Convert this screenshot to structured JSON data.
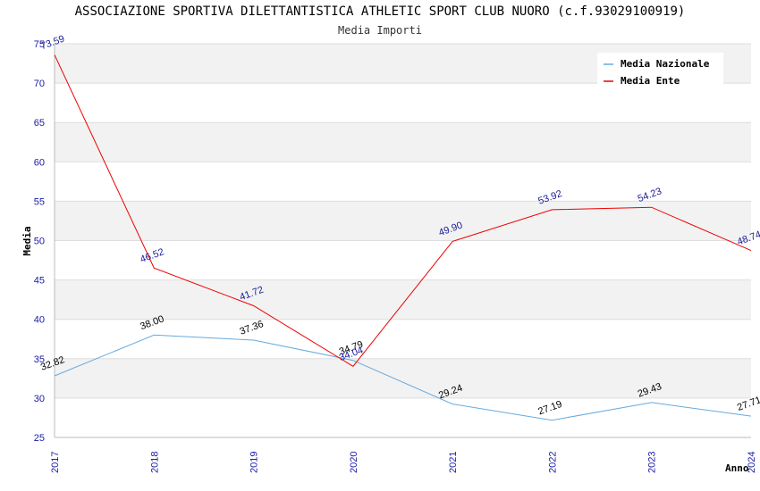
{
  "header": {
    "title": "ASSOCIAZIONE SPORTIVA DILETTANTISTICA ATHLETIC SPORT CLUB NUORO (c.f.93029100919)",
    "subtitle": "Media Importi"
  },
  "chart_data": {
    "type": "line",
    "title": "ASSOCIAZIONE SPORTIVA DILETTANTISTICA ATHLETIC SPORT CLUB NUORO (c.f.93029100919)",
    "subtitle": "Media Importi",
    "xlabel": "Anno",
    "ylabel": "Media",
    "categories": [
      "2017",
      "2018",
      "2019",
      "2020",
      "2021",
      "2022",
      "2023",
      "2024"
    ],
    "ylim": [
      25,
      75
    ],
    "yticks": [
      25,
      30,
      35,
      40,
      45,
      50,
      55,
      60,
      65,
      70,
      75
    ],
    "grid": true,
    "legend_position": "top-right",
    "series": [
      {
        "name": "Media Nazionale",
        "color": "#66aadd",
        "label_color": "#000000",
        "values": [
          32.82,
          38.0,
          37.36,
          34.79,
          29.24,
          27.19,
          29.43,
          27.71
        ],
        "labels": [
          "32.82",
          "38.00",
          "37.36",
          "34.79",
          "29.24",
          "27.19",
          "29.43",
          "27.71"
        ]
      },
      {
        "name": "Media Ente",
        "color": "#ee0000",
        "label_color": "#1a1a99",
        "values": [
          73.59,
          46.52,
          41.72,
          34.04,
          49.9,
          53.92,
          54.23,
          48.74
        ],
        "labels": [
          "73.59",
          "46.52",
          "41.72",
          "34.04",
          "49.90",
          "53.92",
          "54.23",
          "48.74"
        ]
      }
    ]
  }
}
